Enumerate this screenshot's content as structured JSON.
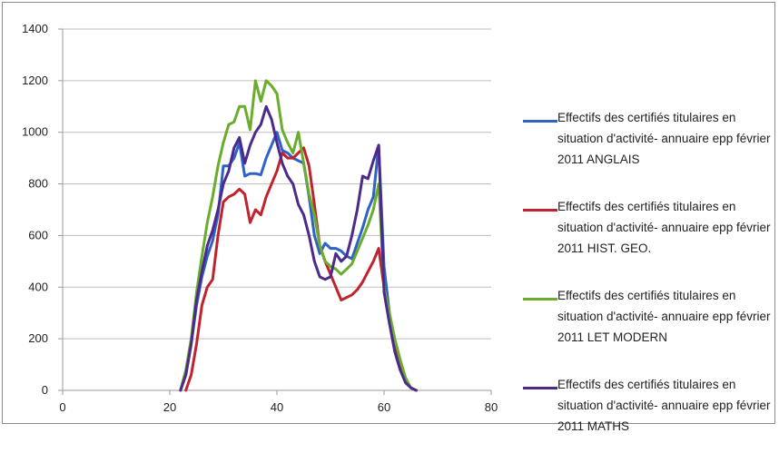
{
  "chart_data": {
    "type": "line",
    "title": "",
    "xlabel": "",
    "ylabel": "",
    "xlim": [
      0,
      80
    ],
    "ylim": [
      0,
      1400
    ],
    "x_ticks": [
      "0",
      "20",
      "40",
      "60",
      "80"
    ],
    "y_ticks": [
      "0",
      "200",
      "400",
      "600",
      "800",
      "1000",
      "1200",
      "1400"
    ],
    "grid": "horizontal",
    "legend_position": "right",
    "series": [
      {
        "name": "Effectifs des certifiés titulaires en situation d'activité- annuaire epp février 2011 ANGLAIS",
        "color": "#2e62c4",
        "points": [
          [
            22,
            0
          ],
          [
            23,
            60
          ],
          [
            24,
            180
          ],
          [
            25,
            330
          ],
          [
            26,
            440
          ],
          [
            27,
            520
          ],
          [
            28,
            580
          ],
          [
            29,
            680
          ],
          [
            30,
            870
          ],
          [
            31,
            870
          ],
          [
            32,
            900
          ],
          [
            33,
            960
          ],
          [
            34,
            830
          ],
          [
            35,
            840
          ],
          [
            36,
            840
          ],
          [
            37,
            835
          ],
          [
            38,
            900
          ],
          [
            39,
            950
          ],
          [
            40,
            1000
          ],
          [
            41,
            930
          ],
          [
            42,
            920
          ],
          [
            43,
            900
          ],
          [
            44,
            890
          ],
          [
            45,
            880
          ],
          [
            46,
            750
          ],
          [
            47,
            600
          ],
          [
            48,
            530
          ],
          [
            49,
            570
          ],
          [
            50,
            550
          ],
          [
            51,
            550
          ],
          [
            52,
            540
          ],
          [
            53,
            520
          ],
          [
            54,
            510
          ],
          [
            55,
            570
          ],
          [
            56,
            630
          ],
          [
            57,
            700
          ],
          [
            58,
            750
          ],
          [
            59,
            950
          ],
          [
            60,
            480
          ],
          [
            61,
            300
          ],
          [
            62,
            180
          ],
          [
            63,
            90
          ],
          [
            64,
            40
          ],
          [
            65,
            10
          ],
          [
            66,
            0
          ]
        ]
      },
      {
        "name": "Effectifs des certifiés titulaires en situation d'activité- annuaire epp février 2011 HIST. GEO.",
        "color": "#c0232c",
        "points": [
          [
            23,
            0
          ],
          [
            24,
            60
          ],
          [
            25,
            180
          ],
          [
            26,
            330
          ],
          [
            27,
            400
          ],
          [
            28,
            430
          ],
          [
            29,
            600
          ],
          [
            30,
            730
          ],
          [
            31,
            750
          ],
          [
            32,
            760
          ],
          [
            33,
            780
          ],
          [
            34,
            760
          ],
          [
            35,
            650
          ],
          [
            36,
            700
          ],
          [
            37,
            680
          ],
          [
            38,
            750
          ],
          [
            39,
            800
          ],
          [
            40,
            850
          ],
          [
            41,
            920
          ],
          [
            42,
            900
          ],
          [
            43,
            900
          ],
          [
            44,
            920
          ],
          [
            45,
            940
          ],
          [
            46,
            870
          ],
          [
            47,
            720
          ],
          [
            48,
            560
          ],
          [
            49,
            500
          ],
          [
            50,
            450
          ],
          [
            51,
            400
          ],
          [
            52,
            350
          ],
          [
            53,
            360
          ],
          [
            54,
            370
          ],
          [
            55,
            390
          ],
          [
            56,
            420
          ],
          [
            57,
            460
          ],
          [
            58,
            500
          ],
          [
            59,
            550
          ],
          [
            60,
            400
          ],
          [
            61,
            300
          ],
          [
            62,
            180
          ],
          [
            63,
            90
          ],
          [
            64,
            40
          ],
          [
            65,
            10
          ],
          [
            66,
            0
          ]
        ]
      },
      {
        "name": "Effectifs des certifiés titulaires en situation d'activité- annuaire epp février 2011 LET MODERN",
        "color": "#6aac2c",
        "points": [
          [
            22,
            0
          ],
          [
            23,
            80
          ],
          [
            24,
            200
          ],
          [
            25,
            380
          ],
          [
            26,
            520
          ],
          [
            27,
            650
          ],
          [
            28,
            750
          ],
          [
            29,
            870
          ],
          [
            30,
            960
          ],
          [
            31,
            1030
          ],
          [
            32,
            1040
          ],
          [
            33,
            1100
          ],
          [
            34,
            1100
          ],
          [
            35,
            1010
          ],
          [
            36,
            1200
          ],
          [
            37,
            1120
          ],
          [
            38,
            1200
          ],
          [
            39,
            1180
          ],
          [
            40,
            1150
          ],
          [
            41,
            1010
          ],
          [
            42,
            960
          ],
          [
            43,
            920
          ],
          [
            44,
            1000
          ],
          [
            45,
            880
          ],
          [
            46,
            760
          ],
          [
            47,
            680
          ],
          [
            48,
            560
          ],
          [
            49,
            500
          ],
          [
            50,
            480
          ],
          [
            51,
            470
          ],
          [
            52,
            450
          ],
          [
            53,
            470
          ],
          [
            54,
            490
          ],
          [
            55,
            540
          ],
          [
            56,
            590
          ],
          [
            57,
            640
          ],
          [
            58,
            700
          ],
          [
            59,
            800
          ],
          [
            60,
            400
          ],
          [
            61,
            300
          ],
          [
            62,
            200
          ],
          [
            63,
            120
          ],
          [
            64,
            50
          ],
          [
            65,
            10
          ],
          [
            66,
            0
          ]
        ]
      },
      {
        "name": "Effectifs des certifiés titulaires en situation d'activité- annuaire epp février 2011 MATHS",
        "color": "#4b2a8c",
        "points": [
          [
            22,
            0
          ],
          [
            23,
            60
          ],
          [
            24,
            180
          ],
          [
            25,
            350
          ],
          [
            26,
            460
          ],
          [
            27,
            560
          ],
          [
            28,
            620
          ],
          [
            29,
            700
          ],
          [
            30,
            800
          ],
          [
            31,
            850
          ],
          [
            32,
            940
          ],
          [
            33,
            980
          ],
          [
            34,
            880
          ],
          [
            35,
            950
          ],
          [
            36,
            1000
          ],
          [
            37,
            1030
          ],
          [
            38,
            1100
          ],
          [
            39,
            1050
          ],
          [
            40,
            960
          ],
          [
            41,
            880
          ],
          [
            42,
            830
          ],
          [
            43,
            800
          ],
          [
            44,
            720
          ],
          [
            45,
            680
          ],
          [
            46,
            600
          ],
          [
            47,
            500
          ],
          [
            48,
            440
          ],
          [
            49,
            430
          ],
          [
            50,
            440
          ],
          [
            51,
            530
          ],
          [
            52,
            500
          ],
          [
            53,
            520
          ],
          [
            54,
            600
          ],
          [
            55,
            700
          ],
          [
            56,
            830
          ],
          [
            57,
            820
          ],
          [
            58,
            890
          ],
          [
            59,
            950
          ],
          [
            60,
            380
          ],
          [
            61,
            260
          ],
          [
            62,
            150
          ],
          [
            63,
            80
          ],
          [
            64,
            30
          ],
          [
            65,
            10
          ],
          [
            66,
            0
          ]
        ]
      }
    ]
  }
}
